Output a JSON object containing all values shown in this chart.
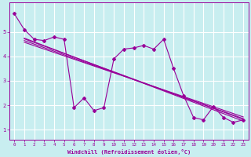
{
  "xlabel": "Windchill (Refroidissement éolien,°C)",
  "background_color": "#c8eef0",
  "grid_color": "#ffffff",
  "line_color": "#990099",
  "xlim": [
    -0.5,
    23.5
  ],
  "ylim": [
    0.6,
    6.2
  ],
  "xticks": [
    0,
    1,
    2,
    3,
    4,
    5,
    6,
    7,
    8,
    9,
    10,
    11,
    12,
    13,
    14,
    15,
    16,
    17,
    18,
    19,
    20,
    21,
    22,
    23
  ],
  "yticks": [
    1,
    2,
    3,
    4,
    5
  ],
  "main_x": [
    0,
    1,
    2,
    3,
    4,
    5,
    6,
    7,
    8,
    9,
    10,
    11,
    12,
    13,
    14,
    15,
    16,
    17,
    18,
    19,
    20,
    21,
    22,
    23
  ],
  "main_y": [
    5.75,
    5.1,
    4.7,
    4.65,
    4.8,
    4.7,
    1.9,
    2.3,
    1.78,
    1.9,
    3.9,
    4.3,
    4.35,
    4.45,
    4.3,
    4.7,
    3.5,
    2.4,
    1.5,
    1.4,
    1.95,
    1.5,
    1.3,
    1.4
  ],
  "trend1_x": [
    1,
    23
  ],
  "trend1_y": [
    4.75,
    1.35
  ],
  "trend2_x": [
    1,
    23
  ],
  "trend2_y": [
    4.65,
    1.45
  ],
  "trend3_x": [
    1,
    23
  ],
  "trend3_y": [
    4.72,
    1.42
  ],
  "trend4_x": [
    1,
    23
  ],
  "trend4_y": [
    4.58,
    1.52
  ]
}
